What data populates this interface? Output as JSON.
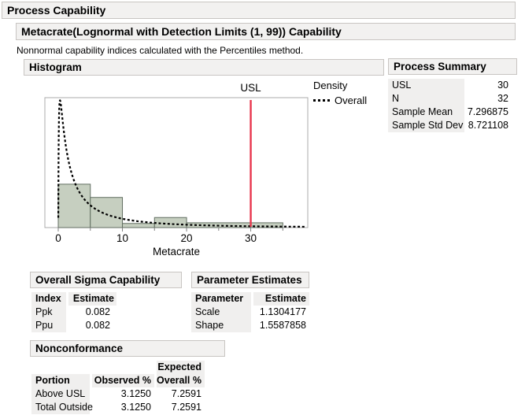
{
  "titles": {
    "main": "Process Capability",
    "sub": "Metacrate(Lognormal with Detection Limits (1, 99)) Capability",
    "note": "Nonnormal capability indices calculated with the Percentiles method.",
    "histogram": "Histogram",
    "process_summary": "Process Summary",
    "overall_sigma": "Overall Sigma Capability",
    "parameter_estimates": "Parameter Estimates",
    "nonconformance": "Nonconformance"
  },
  "legend": {
    "title": "Density",
    "entry": "Overall"
  },
  "process_summary": {
    "rows": [
      {
        "label": "USL",
        "value": "30"
      },
      {
        "label": "N",
        "value": "32"
      },
      {
        "label": "Sample Mean",
        "value": "7.296875"
      },
      {
        "label": "Sample Std Dev",
        "value": "8.721108"
      }
    ]
  },
  "overall_sigma": {
    "headers": {
      "index": "Index",
      "estimate": "Estimate"
    },
    "rows": [
      {
        "index": "Ppk",
        "estimate": "0.082"
      },
      {
        "index": "Ppu",
        "estimate": "0.082"
      }
    ]
  },
  "parameter_estimates": {
    "headers": {
      "parameter": "Parameter",
      "estimate": "Estimate"
    },
    "rows": [
      {
        "parameter": "Scale",
        "estimate": "1.1304177"
      },
      {
        "parameter": "Shape",
        "estimate": "1.5587858"
      }
    ]
  },
  "nonconformance": {
    "headers": {
      "portion": "Portion",
      "observed": "Observed %",
      "expected_line1": "Expected",
      "expected_line2": "Overall %"
    },
    "rows": [
      {
        "portion": "Above USL",
        "observed": "3.1250",
        "expected": "7.2591"
      },
      {
        "portion": "Total Outside",
        "observed": "3.1250",
        "expected": "7.2591"
      }
    ]
  },
  "chart_data": {
    "type": "histogram",
    "xlabel": "Metacrate",
    "n": 32,
    "x_major_ticks": [
      0,
      10,
      20,
      30
    ],
    "x_minor_ticks": [
      5,
      15,
      25,
      35
    ],
    "x_range": [
      -2.1,
      38.9
    ],
    "bins": [
      {
        "x0": 0,
        "x1": 5,
        "density": 0.095,
        "count": 15
      },
      {
        "x0": 5,
        "x1": 10,
        "density": 0.066,
        "count": 10
      },
      {
        "x0": 10,
        "x1": 15,
        "density": 0.009,
        "count": 1
      },
      {
        "x0": 15,
        "x1": 20,
        "density": 0.022,
        "count": 3
      },
      {
        "x0": 20,
        "x1": 35,
        "density": 0.0105,
        "count": 3
      }
    ],
    "usl": {
      "label": "USL",
      "value": 30
    },
    "curve": {
      "name": "Overall",
      "distribution": "lognormal",
      "scale": 1.1304177,
      "shape": 1.5587858
    },
    "colors": {
      "bar_fill": "#c6cfc0",
      "bar_stroke": "#616e61",
      "usl_line": "#e8364c",
      "curve": "#000000",
      "frame": "#ababab",
      "tick": "#808080"
    }
  }
}
